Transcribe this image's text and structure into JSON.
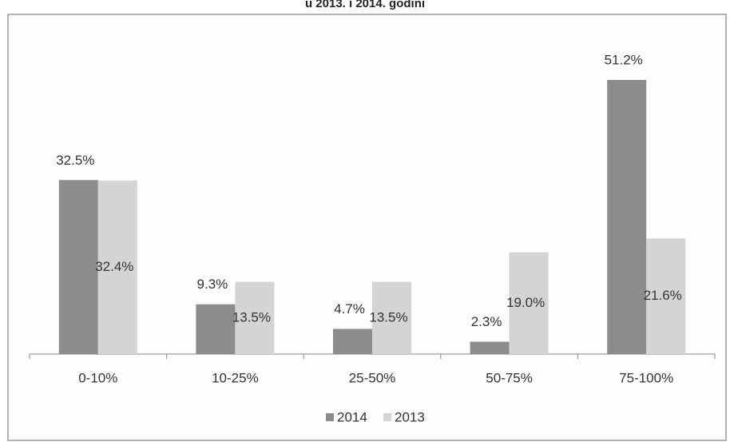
{
  "chart_data": {
    "type": "bar",
    "title": "u 2013. i 2014. godini",
    "categories": [
      "0-10%",
      "10-25%",
      "25-50%",
      "50-75%",
      "75-100%"
    ],
    "series": [
      {
        "name": "2014",
        "color": "#8c8c8c",
        "values": [
          32.5,
          9.3,
          4.7,
          2.3,
          51.2
        ],
        "value_labels": [
          "32.5%",
          "9.3%",
          "4.7%",
          "2.3%",
          "51.2%"
        ]
      },
      {
        "name": "2013",
        "color": "#d4d4d4",
        "values": [
          32.4,
          13.5,
          13.5,
          19.0,
          21.6
        ],
        "value_labels": [
          "32.4%",
          "13.5%",
          "13.5%",
          "19.0%",
          "21.6%"
        ]
      }
    ],
    "legend": "bottom"
  }
}
